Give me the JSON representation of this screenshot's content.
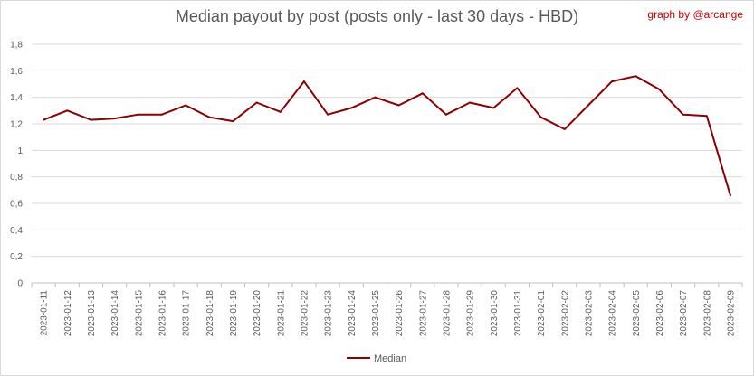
{
  "chart_data": {
    "type": "line",
    "title": "Median payout by post (posts only - last 30 days - HBD)",
    "credit": "graph by @arcange",
    "xlabel": "",
    "ylabel": "",
    "ylim": [
      0,
      1.8
    ],
    "yticks": [
      "0",
      "0,2",
      "0,4",
      "0,6",
      "0,8",
      "1",
      "1,2",
      "1,4",
      "1,6",
      "1,8"
    ],
    "grid": true,
    "legend_position": "bottom",
    "categories": [
      "2023-01-11",
      "2023-01-12",
      "2023-01-13",
      "2023-01-14",
      "2023-01-15",
      "2023-01-16",
      "2023-01-17",
      "2023-01-18",
      "2023-01-19",
      "2023-01-20",
      "2023-01-21",
      "2023-01-22",
      "2023-01-23",
      "2023-01-24",
      "2023-01-25",
      "2023-01-26",
      "2023-01-27",
      "2023-01-28",
      "2023-01-29",
      "2023-01-30",
      "2023-01-31",
      "2023-02-01",
      "2023-02-02",
      "2023-02-03",
      "2023-02-04",
      "2023-02-05",
      "2023-02-06",
      "2023-02-07",
      "2023-02-08",
      "2023-02-09"
    ],
    "series": [
      {
        "name": "Median",
        "color": "#8b0000",
        "values": [
          1.23,
          1.3,
          1.23,
          1.24,
          1.27,
          1.27,
          1.34,
          1.25,
          1.22,
          1.36,
          1.29,
          1.52,
          1.27,
          1.32,
          1.4,
          1.34,
          1.43,
          1.27,
          1.36,
          1.32,
          1.47,
          1.25,
          1.16,
          1.34,
          1.52,
          1.56,
          1.46,
          1.27,
          1.26,
          0.66
        ]
      }
    ]
  }
}
